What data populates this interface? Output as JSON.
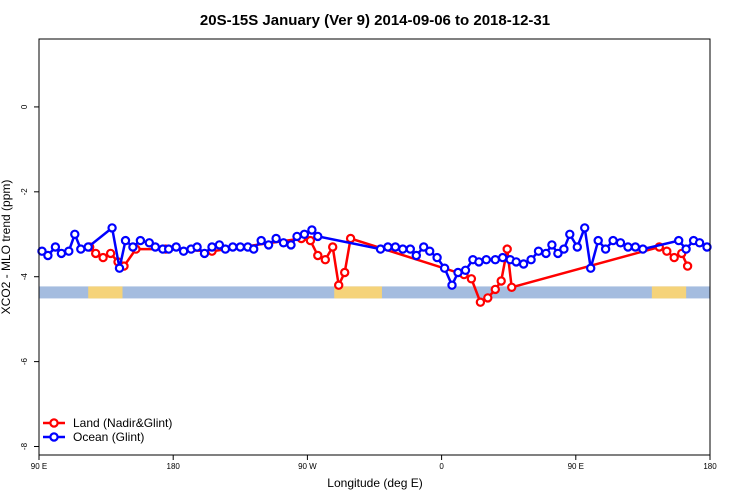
{
  "chart_data": {
    "type": "line",
    "title": "20S-15S January (Ver 9)   2014-09-06 to 2018-12-31",
    "xlabel": "Longitude (deg E)",
    "ylabel": "XCO2 - MLO trend (ppm)",
    "x_ticks": [
      {
        "value": 90,
        "label": "90 E"
      },
      {
        "value": 180,
        "label": "180"
      },
      {
        "value": 270,
        "label": "90 W"
      },
      {
        "value": 360,
        "label": "0"
      },
      {
        "value": 450,
        "label": "90 E"
      },
      {
        "value": 540,
        "label": "180"
      }
    ],
    "xlim": [
      90,
      540
    ],
    "y_ticks": [
      0,
      -2,
      -4,
      -6,
      -8
    ],
    "ylim": [
      -8.2,
      1.6
    ],
    "grid": false,
    "legend_position": "bottom-left",
    "surface_band": {
      "y": -4.37,
      "ocean_color": "#a4bcdf",
      "land_color": "#f5d37a",
      "land_x_ranges": [
        [
          123,
          146
        ],
        [
          288,
          320
        ],
        [
          501,
          524
        ]
      ]
    },
    "series": [
      {
        "name": "Land (Nadir&Glint)",
        "color": "#ff0000",
        "x": [
          124,
          128,
          133,
          138,
          143,
          147,
          155,
          175,
          206,
          266,
          272,
          277,
          282,
          287,
          291,
          295,
          299,
          375,
          380,
          386,
          391,
          396,
          400,
          404,
          407,
          506,
          511,
          516,
          521,
          525
        ],
        "y": [
          -3.3,
          -3.45,
          -3.55,
          -3.45,
          -3.65,
          -3.75,
          -3.35,
          -3.35,
          -3.4,
          -3.1,
          -3.15,
          -3.5,
          -3.6,
          -3.3,
          -4.2,
          -3.9,
          -3.1,
          -3.95,
          -4.05,
          -4.6,
          -4.5,
          -4.3,
          -4.1,
          -3.35,
          -4.25,
          -3.3,
          -3.4,
          -3.55,
          -3.45,
          -3.75
        ]
      },
      {
        "name": "Ocean (Glint)",
        "color": "#0000ff",
        "x": [
          92,
          96,
          101,
          105,
          110,
          114,
          118,
          123,
          139,
          144,
          148,
          153,
          158,
          164,
          168,
          173,
          177,
          182,
          187,
          192,
          196,
          201,
          206,
          211,
          215,
          220,
          225,
          230,
          234,
          239,
          244,
          249,
          254,
          259,
          263,
          268,
          273,
          277,
          319,
          324,
          329,
          334,
          339,
          343,
          348,
          352,
          357,
          362,
          367,
          371,
          376,
          381,
          385,
          390,
          396,
          401,
          406,
          410,
          415,
          420,
          425,
          430,
          434,
          438,
          442,
          446,
          451,
          456,
          460,
          465,
          470,
          475,
          480,
          485,
          490,
          495,
          519,
          524,
          529,
          533,
          538
        ],
        "y": [
          -3.4,
          -3.5,
          -3.3,
          -3.45,
          -3.4,
          -3.0,
          -3.35,
          -3.3,
          -2.85,
          -3.8,
          -3.15,
          -3.3,
          -3.15,
          -3.2,
          -3.3,
          -3.35,
          -3.35,
          -3.3,
          -3.4,
          -3.35,
          -3.3,
          -3.45,
          -3.3,
          -3.25,
          -3.35,
          -3.3,
          -3.3,
          -3.3,
          -3.35,
          -3.15,
          -3.25,
          -3.1,
          -3.2,
          -3.25,
          -3.05,
          -3.0,
          -2.9,
          -3.05,
          -3.35,
          -3.3,
          -3.3,
          -3.35,
          -3.35,
          -3.5,
          -3.3,
          -3.4,
          -3.55,
          -3.8,
          -4.2,
          -3.9,
          -3.85,
          -3.6,
          -3.65,
          -3.6,
          -3.6,
          -3.55,
          -3.6,
          -3.65,
          -3.7,
          -3.6,
          -3.4,
          -3.45,
          -3.25,
          -3.45,
          -3.35,
          -3.0,
          -3.3,
          -2.85,
          -3.8,
          -3.15,
          -3.35,
          -3.15,
          -3.2,
          -3.3,
          -3.3,
          -3.35,
          -3.15,
          -3.35,
          -3.15,
          -3.2,
          -3.3
        ]
      }
    ]
  }
}
